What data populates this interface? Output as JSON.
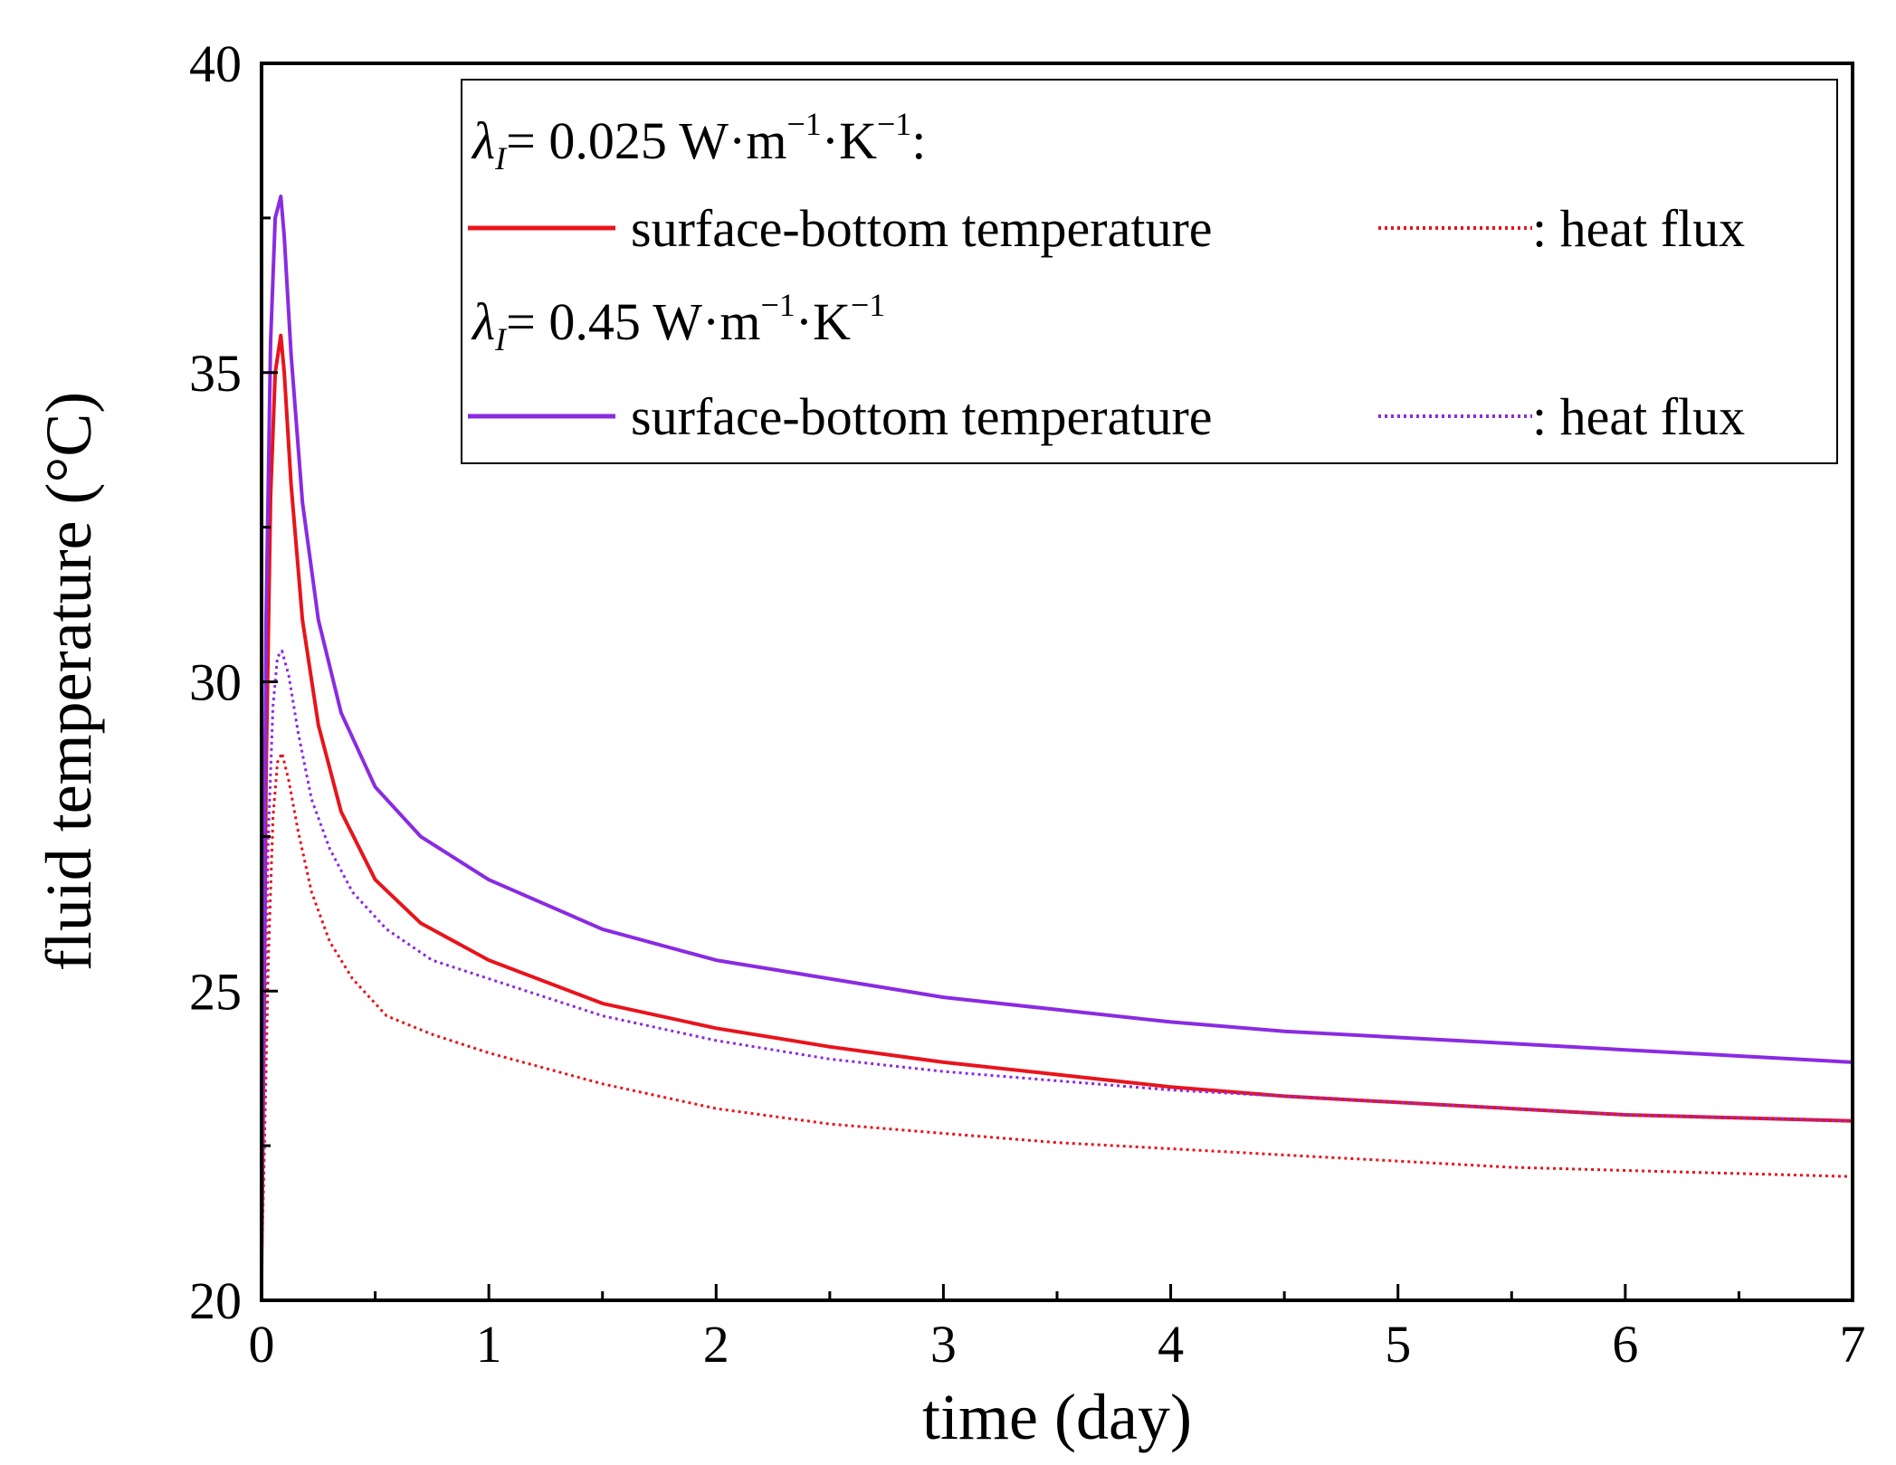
{
  "chart_data": {
    "type": "line",
    "title": "",
    "xlabel": "time (day)",
    "ylabel": "fluid temperature (°C)",
    "xlim": [
      0,
      7
    ],
    "ylim": [
      20,
      40
    ],
    "xticks": [
      "0",
      "1",
      "2",
      "3",
      "4",
      "5",
      "6",
      "7"
    ],
    "yticks": [
      "20",
      "25",
      "30",
      "35",
      "40"
    ],
    "grid": false,
    "legend_position": "top-right",
    "legend": {
      "group1_header": {
        "symbol": "λ",
        "subscript": "I",
        "text": "= 0.025 W·m",
        "exp1": "−1",
        "mid": "·K",
        "exp2": "−1",
        "tail": ":"
      },
      "group2_header": {
        "symbol": "λ",
        "subscript": "I",
        "text": "= 0.45 W·m",
        "exp1": "−1",
        "mid": "·K",
        "exp2": "−1",
        "tail": ""
      },
      "solid_label": "surface-bottom temperature",
      "dotted_label": ": heat flux"
    },
    "series": [
      {
        "name": "λI = 0.025 surface-bottom temperature",
        "color": "#e8141c",
        "style": "solid",
        "x": [
          0.0,
          0.01,
          0.02,
          0.04,
          0.06,
          0.085,
          0.1,
          0.13,
          0.18,
          0.25,
          0.35,
          0.5,
          0.7,
          1.0,
          1.5,
          2.0,
          2.5,
          3.0,
          3.5,
          4.0,
          4.5,
          5.0,
          5.5,
          6.0,
          6.5,
          7.0
        ],
        "y": [
          20.5,
          24.0,
          28.5,
          33.0,
          35.0,
          35.6,
          35.0,
          33.2,
          31.0,
          29.3,
          27.9,
          26.8,
          26.1,
          25.5,
          24.8,
          24.4,
          24.1,
          23.85,
          23.65,
          23.45,
          23.3,
          23.2,
          23.1,
          23.0,
          22.95,
          22.9
        ]
      },
      {
        "name": "λI = 0.025 heat flux",
        "color": "#e8141c",
        "style": "dotted",
        "x": [
          0.0,
          0.01,
          0.03,
          0.05,
          0.07,
          0.09,
          0.12,
          0.16,
          0.22,
          0.3,
          0.4,
          0.55,
          0.75,
          1.0,
          1.5,
          2.0,
          2.5,
          3.0,
          3.5,
          4.0,
          4.5,
          5.0,
          5.5,
          6.0,
          6.5,
          7.0
        ],
        "y": [
          20.5,
          22.0,
          25.5,
          27.8,
          28.7,
          28.85,
          28.4,
          27.6,
          26.6,
          25.8,
          25.2,
          24.6,
          24.3,
          24.0,
          23.5,
          23.1,
          22.85,
          22.7,
          22.55,
          22.45,
          22.35,
          22.25,
          22.15,
          22.1,
          22.05,
          22.0
        ]
      },
      {
        "name": "λI = 0.45 surface-bottom temperature",
        "color": "#8a2be2",
        "style": "solid",
        "x": [
          0.0,
          0.01,
          0.02,
          0.04,
          0.06,
          0.085,
          0.1,
          0.13,
          0.18,
          0.25,
          0.35,
          0.5,
          0.7,
          1.0,
          1.5,
          2.0,
          2.5,
          3.0,
          3.5,
          4.0,
          4.5,
          5.0,
          5.5,
          6.0,
          6.5,
          7.0
        ],
        "y": [
          21.0,
          26.0,
          31.0,
          35.5,
          37.5,
          37.85,
          37.2,
          35.3,
          32.9,
          31.0,
          29.5,
          28.3,
          27.5,
          26.8,
          26.0,
          25.5,
          25.2,
          24.9,
          24.7,
          24.5,
          24.35,
          24.25,
          24.15,
          24.05,
          23.95,
          23.85
        ]
      },
      {
        "name": "λI = 0.45 heat flux",
        "color": "#8a2be2",
        "style": "dotted",
        "x": [
          0.0,
          0.01,
          0.03,
          0.05,
          0.07,
          0.09,
          0.12,
          0.16,
          0.22,
          0.3,
          0.4,
          0.55,
          0.75,
          1.0,
          1.5,
          2.0,
          2.5,
          3.0,
          3.5,
          4.0,
          4.5,
          5.0,
          5.5,
          6.0,
          6.5,
          7.0
        ],
        "y": [
          21.0,
          23.5,
          27.5,
          29.6,
          30.4,
          30.5,
          30.1,
          29.2,
          28.1,
          27.3,
          26.6,
          26.0,
          25.5,
          25.2,
          24.6,
          24.2,
          23.9,
          23.7,
          23.55,
          23.4,
          23.3,
          23.2,
          23.1,
          23.0,
          22.95,
          22.9
        ]
      }
    ]
  }
}
